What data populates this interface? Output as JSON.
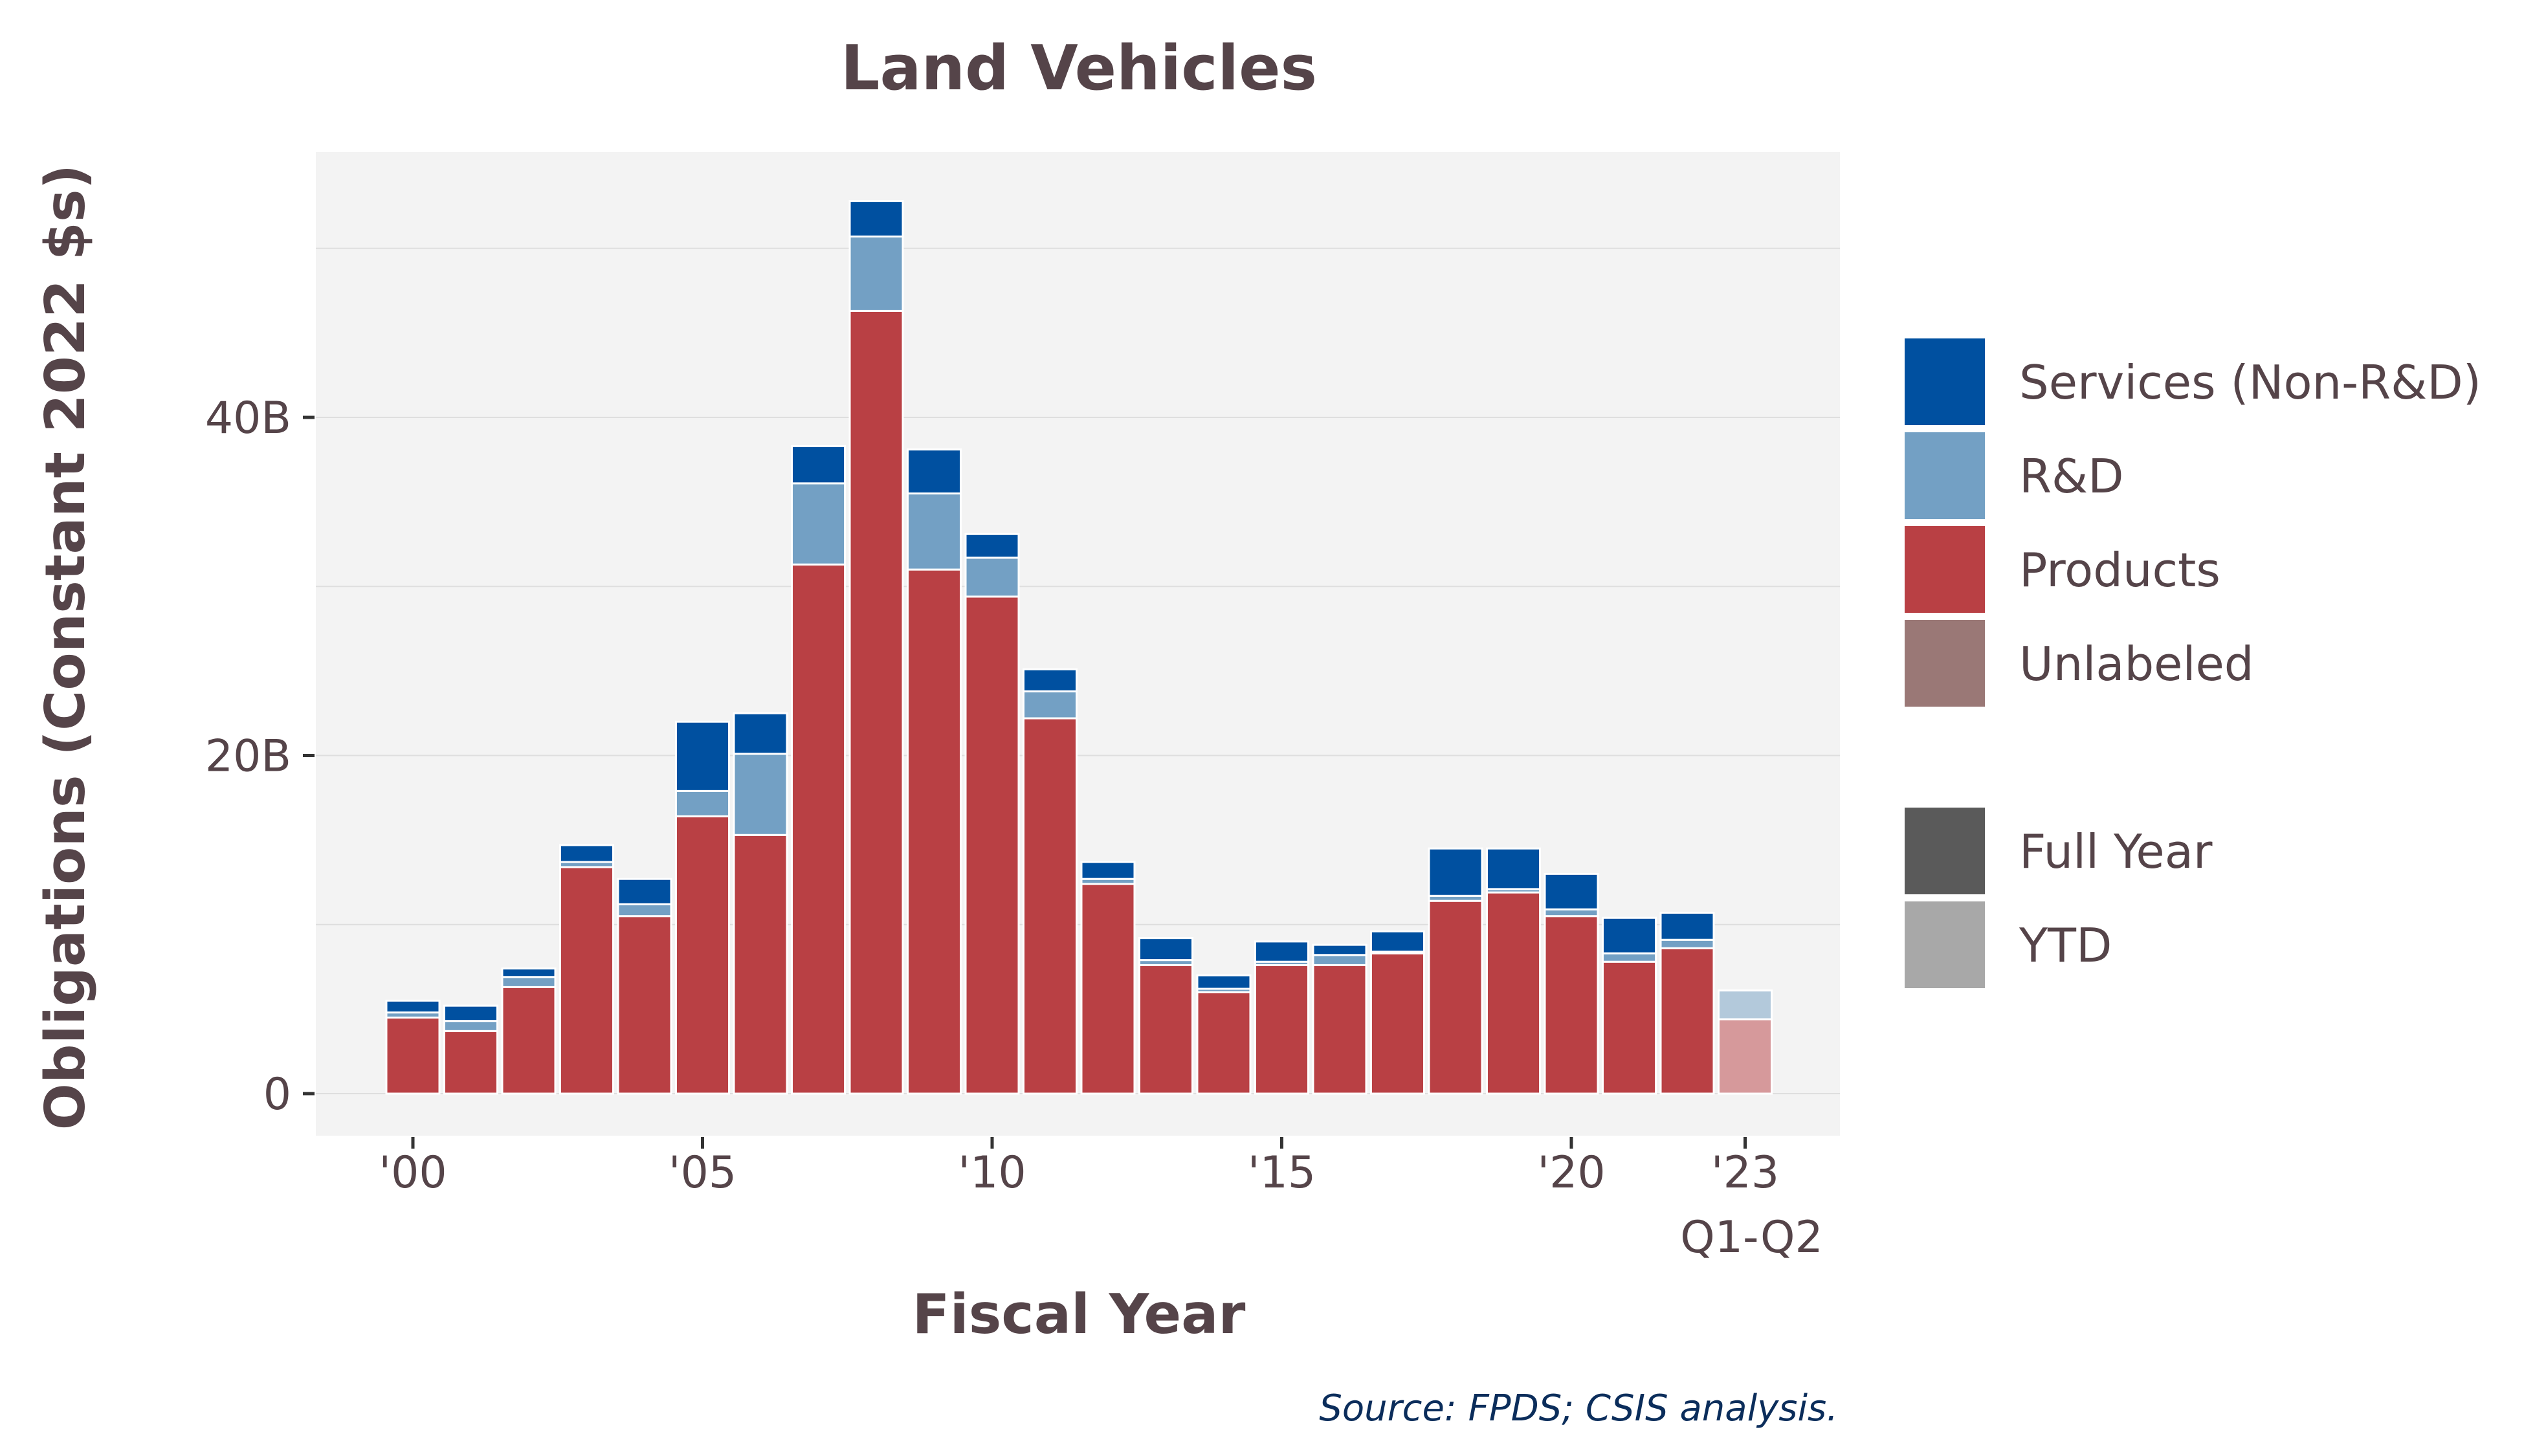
{
  "chart_data": {
    "type": "bar",
    "stacked": true,
    "title": "Land Vehicles",
    "xlabel": "Fiscal Year",
    "ylabel": "Obligations (Constant 2022 $s)",
    "source": "Source: FPDS; CSIS analysis.",
    "ylim": [
      0,
      56
    ],
    "yticks": [
      0,
      20,
      40
    ],
    "ytick_labels": [
      "0",
      "20B",
      "40B"
    ],
    "xticks": [
      2000,
      2005,
      2010,
      2015,
      2020,
      2023
    ],
    "xtick_labels": [
      "'00",
      "'05",
      "'10",
      "'15",
      "'20",
      "'23"
    ],
    "xtick_sublabel": "Q1-Q2",
    "grid": true,
    "legend_position": "right",
    "categories": [
      2000,
      2001,
      2002,
      2003,
      2004,
      2005,
      2006,
      2007,
      2008,
      2009,
      2010,
      2011,
      2012,
      2013,
      2014,
      2015,
      2016,
      2017,
      2018,
      2019,
      2020,
      2021,
      2022,
      2023
    ],
    "period_type": [
      "Full Year",
      "Full Year",
      "Full Year",
      "Full Year",
      "Full Year",
      "Full Year",
      "Full Year",
      "Full Year",
      "Full Year",
      "Full Year",
      "Full Year",
      "Full Year",
      "Full Year",
      "Full Year",
      "Full Year",
      "Full Year",
      "Full Year",
      "Full Year",
      "Full Year",
      "Full Year",
      "Full Year",
      "Full Year",
      "Full Year",
      "YTD"
    ],
    "series": [
      {
        "name": "Products",
        "color": "#B94044",
        "values": [
          4.5,
          3.7,
          6.3,
          13.4,
          10.5,
          16.4,
          15.3,
          31.3,
          46.3,
          31.0,
          29.4,
          22.2,
          12.4,
          7.6,
          6.0,
          7.6,
          7.6,
          8.3,
          11.4,
          11.9,
          10.5,
          7.8,
          8.6,
          4.4
        ]
      },
      {
        "name": "R&D",
        "color": "#73A0C4",
        "values": [
          0.3,
          0.6,
          0.6,
          0.3,
          0.7,
          1.5,
          4.8,
          4.8,
          4.4,
          4.5,
          2.3,
          1.6,
          0.3,
          0.3,
          0.2,
          0.2,
          0.6,
          0.1,
          0.3,
          0.2,
          0.4,
          0.5,
          0.5,
          1.7
        ]
      },
      {
        "name": "Services (Non-R&D)",
        "color": "#0050A0",
        "values": [
          0.7,
          0.9,
          0.5,
          1.0,
          1.5,
          4.1,
          2.4,
          2.2,
          2.1,
          2.6,
          1.4,
          1.3,
          1.0,
          1.3,
          0.8,
          1.2,
          0.6,
          1.2,
          2.8,
          2.4,
          2.1,
          2.1,
          1.6,
          0.0
        ]
      },
      {
        "name": "Unlabeled",
        "color": "#9A7876",
        "values": [
          0,
          0,
          0,
          0,
          0,
          0,
          0,
          0,
          0,
          0,
          0,
          0,
          0,
          0,
          0,
          0,
          0,
          0,
          0,
          0,
          0,
          0,
          0,
          0
        ]
      }
    ],
    "legend": {
      "series_entries": [
        {
          "label": "Services (Non-R&D)",
          "color": "#0050A0"
        },
        {
          "label": "R&D",
          "color": "#73A0C4"
        },
        {
          "label": "Products",
          "color": "#B94044"
        },
        {
          "label": "Unlabeled",
          "color": "#9A7876"
        }
      ],
      "period_entries": [
        {
          "label": "Full Year",
          "color": "#5A5A5A"
        },
        {
          "label": "YTD",
          "color": "#A8A8A8"
        }
      ]
    },
    "colors": {
      "panel_background": "#F3F3F3",
      "gridline": "#DEDEDE",
      "text": "#554449",
      "source_text": "#0B2D5B"
    }
  }
}
